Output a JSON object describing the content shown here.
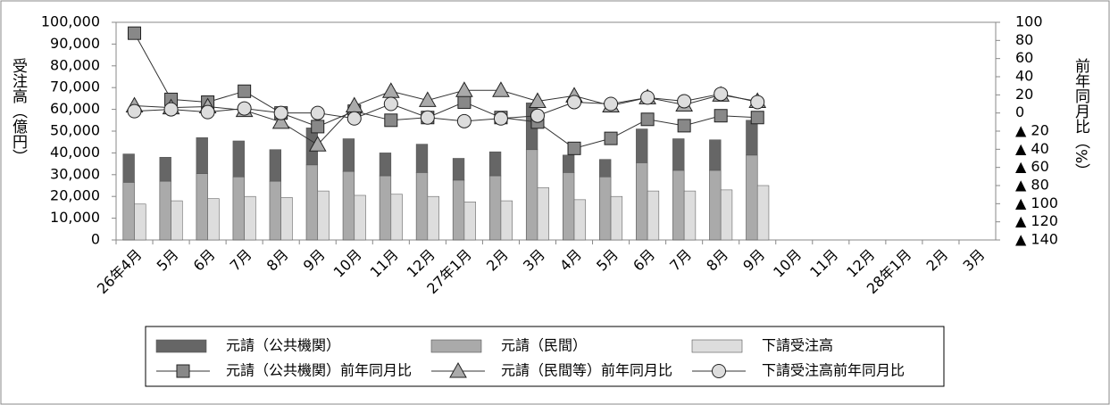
{
  "chart_data": {
    "type": "bar",
    "y_label": "受注高（億円）",
    "y2_label": "前年同月比（%）",
    "categories": [
      "26年4月",
      "5月",
      "6月",
      "7月",
      "8月",
      "9月",
      "10月",
      "11月",
      "12月",
      "27年1月",
      "2月",
      "3月",
      "4月",
      "5月",
      "6月",
      "7月",
      "8月",
      "9月",
      "10月",
      "11月",
      "12月",
      "28年1月",
      "2月",
      "3月"
    ],
    "ylim": [
      0,
      100000
    ],
    "yticks": [
      0,
      {
        "value": 10000,
        "label": "10,000"
      },
      {
        "value": 20000,
        "label": "20,000"
      },
      {
        "value": 30000,
        "label": "30,000"
      },
      {
        "value": 40000,
        "label": "40,000"
      },
      {
        "value": 50000,
        "label": "50,000"
      },
      {
        "value": 60000,
        "label": "60,000"
      },
      {
        "value": 70000,
        "label": "70,000"
      },
      {
        "value": 80000,
        "label": "80,000"
      },
      {
        "value": 90000,
        "label": "90,000"
      },
      {
        "value": 100000,
        "label": "100,000"
      }
    ],
    "y2lim": [
      -140,
      100
    ],
    "y2ticks": [
      {
        "value": -140,
        "label": "▲ 140"
      },
      {
        "value": -120,
        "label": "▲ 120"
      },
      {
        "value": -100,
        "label": "▲ 100"
      },
      {
        "value": -80,
        "label": "▲ 80"
      },
      {
        "value": -60,
        "label": "▲ 60"
      },
      {
        "value": -40,
        "label": "▲ 40"
      },
      {
        "value": -20,
        "label": "▲ 20"
      },
      0,
      20,
      40,
      60,
      80,
      100
    ],
    "series": [
      {
        "name": "元請（公共機関）",
        "kind": "stack",
        "color": "#666666",
        "values": [
          13000,
          11000,
          16500,
          16500,
          14500,
          17000,
          15000,
          10500,
          13000,
          10000,
          11000,
          21500,
          8000,
          8000,
          15500,
          14500,
          14000,
          16000,
          null,
          null,
          null,
          null,
          null,
          null
        ]
      },
      {
        "name": "元請（民間）",
        "kind": "stack",
        "color": "#aaaaaa",
        "values": [
          26500,
          27000,
          30500,
          29000,
          27000,
          34500,
          31500,
          29500,
          31000,
          27500,
          29500,
          41500,
          31000,
          29000,
          35500,
          32000,
          32000,
          39000,
          null,
          null,
          null,
          null,
          null,
          null
        ]
      },
      {
        "name": "下請受注高",
        "kind": "bar",
        "color": "#dddddd",
        "values": [
          16500,
          18000,
          19000,
          20000,
          19500,
          22500,
          20500,
          21000,
          20000,
          17500,
          18000,
          24000,
          18500,
          20000,
          22500,
          22500,
          23000,
          25000,
          null,
          null,
          null,
          null,
          null,
          null
        ]
      },
      {
        "name": "元請（公共機関）前年同月比",
        "kind": "line",
        "marker": "square",
        "axis": "y2",
        "color": "#888888",
        "values": [
          88,
          15,
          12,
          24,
          0,
          -15,
          2,
          -8,
          -5,
          12,
          -5,
          -10,
          -39,
          -28,
          -7,
          -14,
          -3,
          -5,
          null,
          null,
          null,
          null,
          null,
          null
        ]
      },
      {
        "name": "元請（民間等）前年同月比",
        "kind": "line",
        "marker": "triangle",
        "axis": "y2",
        "color": "#aaaaaa",
        "values": [
          8,
          6,
          7,
          3,
          -10,
          -35,
          8,
          24,
          14,
          25,
          25,
          13,
          19,
          8,
          17,
          9,
          20,
          13,
          null,
          null,
          null,
          null,
          null,
          null
        ]
      },
      {
        "name": "下請受注高前年同月比",
        "kind": "line",
        "marker": "circle",
        "axis": "y2",
        "color": "#dddddd",
        "values": [
          2,
          4,
          1,
          5,
          0,
          0,
          -6,
          10,
          -5,
          -9,
          -6,
          -3,
          12,
          10,
          17,
          13,
          21,
          12,
          null,
          null,
          null,
          null,
          null,
          null
        ]
      }
    ]
  }
}
